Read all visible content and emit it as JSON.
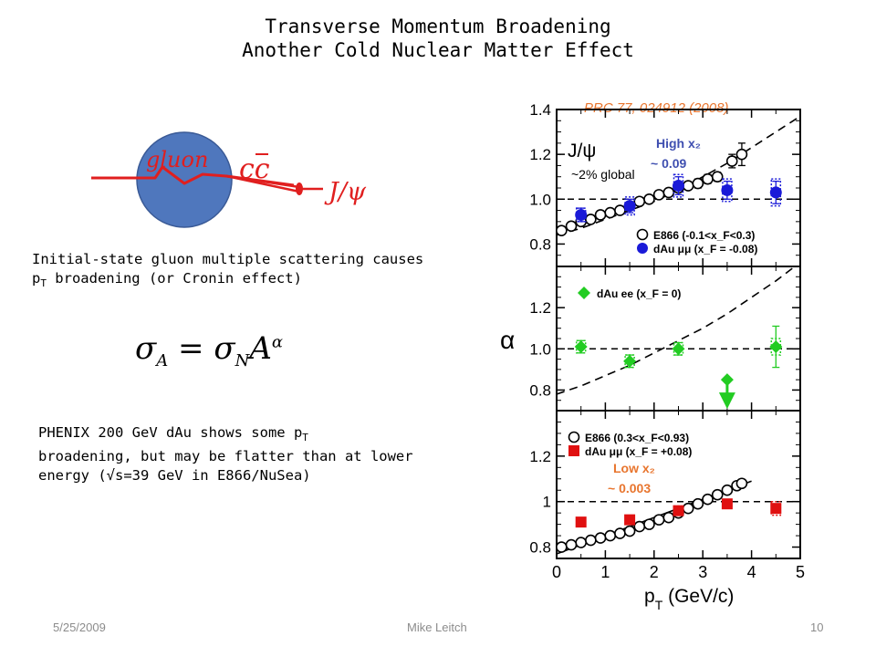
{
  "slide": {
    "title_line1": "Transverse Momentum Broadening",
    "title_line2": "Another Cold Nuclear Matter Effect",
    "citation": "PRC  77, 024912 (2008)",
    "diagram": {
      "gluon_label": "gluon",
      "pair_label": "cc",
      "jpsi_label": "J/ψ"
    },
    "text1_line1": "Initial-state gluon multiple scattering causes",
    "text1_line2_a": "p",
    "text1_line2_sub": "T",
    "text1_line2_b": " broadening (or Cronin effect)",
    "formula": {
      "sigma": "σ",
      "sub_A": "A",
      "eq": "=",
      "sub_N": "N",
      "A": "A",
      "alpha": "α"
    },
    "text2_line1_a": "PHENIX 200 GeV dAu shows some p",
    "text2_line1_sub": "T",
    "text2_line2": "broadening, but may be flatter than at lower",
    "text2_line3": "energy (√s=39 GeV in E866/NuSea)",
    "footer": {
      "date": "5/25/2009",
      "author": "Mike Leitch",
      "page": "10"
    }
  },
  "chart_data": {
    "type": "scatter",
    "xlabel": "p_T (GeV/c)",
    "ylabel": "α",
    "x_ticks": [
      0,
      1,
      2,
      3,
      4,
      5
    ],
    "xlim": [
      0,
      5
    ],
    "panels": [
      {
        "ylim": [
          0.7,
          1.4
        ],
        "y_ticks": [
          0.8,
          1.0,
          1.2,
          1.4
        ],
        "y_tick_labels": [
          "0.8",
          "1.0",
          "1.2",
          "1.4"
        ],
        "annotations": [
          "J/ψ",
          "~2% global",
          "High x₂",
          "~ 0.09"
        ],
        "legend": [
          "E866 (-0.1<x_F<0.3)",
          "dAu μμ (x_F = -0.08)"
        ],
        "series": [
          {
            "name": "E866 (-0.1<x_F<0.3)",
            "color": "#000000",
            "marker": "open-circle",
            "x": [
              0.1,
              0.3,
              0.5,
              0.7,
              0.9,
              1.1,
              1.3,
              1.5,
              1.7,
              1.9,
              2.1,
              2.3,
              2.5,
              2.7,
              2.9,
              3.1,
              3.3,
              3.6,
              3.8
            ],
            "y": [
              0.86,
              0.88,
              0.9,
              0.91,
              0.93,
              0.94,
              0.95,
              0.97,
              0.99,
              1.0,
              1.02,
              1.03,
              1.05,
              1.06,
              1.07,
              1.09,
              1.1,
              1.17,
              1.2
            ],
            "yerr": [
              0.01,
              0.01,
              0.01,
              0.01,
              0.01,
              0.01,
              0.01,
              0.01,
              0.01,
              0.01,
              0.01,
              0.01,
              0.01,
              0.01,
              0.02,
              0.02,
              0.02,
              0.03,
              0.05
            ]
          },
          {
            "name": "dAu μμ (x_F = -0.08)",
            "color": "#1a1ad8",
            "marker": "filled-circle",
            "x": [
              0.5,
              1.5,
              2.5,
              3.5,
              4.5
            ],
            "y": [
              0.93,
              0.97,
              1.06,
              1.04,
              1.03
            ],
            "yerr": [
              0.03,
              0.03,
              0.04,
              0.04,
              0.05
            ],
            "syserr": [
              0.03,
              0.04,
              0.05,
              0.05,
              0.06
            ]
          }
        ],
        "fit_curve": {
          "style": "dashed",
          "x": [
            0,
            0.5,
            1,
            1.5,
            2,
            2.5,
            3,
            3.5,
            4,
            4.5,
            5
          ],
          "y": [
            0.84,
            0.87,
            0.91,
            0.95,
            0.99,
            1.04,
            1.1,
            1.16,
            1.23,
            1.3,
            1.37
          ]
        },
        "reference_line": 1.0
      },
      {
        "ylim": [
          0.7,
          1.4
        ],
        "y_ticks": [
          0.8,
          1.0,
          1.2,
          1.4
        ],
        "y_tick_labels": [
          "0.8",
          "1.0",
          "1.2",
          ""
        ],
        "annotations": [],
        "legend": [
          "dAu ee (x_F = 0)"
        ],
        "series": [
          {
            "name": "dAu ee (x_F = 0)",
            "color": "#22cc22",
            "marker": "filled-diamond",
            "x": [
              0.5,
              1.5,
              2.5,
              4.5
            ],
            "y": [
              1.01,
              0.94,
              1.0,
              1.01
            ],
            "yerr": [
              0.03,
              0.03,
              0.03,
              0.1
            ],
            "syserr": [
              0.03,
              0.03,
              0.03,
              0.04
            ]
          },
          {
            "name": "dAu ee upper limit",
            "color": "#22cc22",
            "marker": "upper-limit",
            "x": [
              3.5
            ],
            "y": [
              0.85
            ]
          }
        ],
        "fit_curve": {
          "style": "dashed",
          "x": [
            0,
            0.5,
            1,
            1.5,
            2,
            2.5,
            3,
            3.5,
            4,
            4.5,
            5
          ],
          "y": [
            0.78,
            0.82,
            0.87,
            0.92,
            0.98,
            1.04,
            1.1,
            1.17,
            1.25,
            1.33,
            1.42
          ]
        },
        "reference_line": 1.0
      },
      {
        "ylim": [
          0.75,
          1.4
        ],
        "y_ticks": [
          0.8,
          1.0,
          1.2
        ],
        "y_tick_labels": [
          "0.8",
          "1",
          "1.2"
        ],
        "annotations": [
          "Low x₂",
          "~ 0.003"
        ],
        "legend": [
          "E866 (0.3<x_F<0.93)",
          "dAu μμ (x_F = +0.08)"
        ],
        "series": [
          {
            "name": "E866 (0.3<x_F<0.93)",
            "color": "#000000",
            "marker": "open-circle",
            "x": [
              0.1,
              0.3,
              0.5,
              0.7,
              0.9,
              1.1,
              1.3,
              1.5,
              1.7,
              1.9,
              2.1,
              2.3,
              2.5,
              2.7,
              2.9,
              3.1,
              3.3,
              3.5,
              3.7,
              3.8
            ],
            "y": [
              0.8,
              0.81,
              0.82,
              0.83,
              0.84,
              0.85,
              0.86,
              0.87,
              0.89,
              0.9,
              0.92,
              0.93,
              0.95,
              0.97,
              0.99,
              1.01,
              1.03,
              1.05,
              1.07,
              1.08
            ],
            "yerr": [
              0.01,
              0.01,
              0.01,
              0.01,
              0.01,
              0.01,
              0.01,
              0.01,
              0.01,
              0.01,
              0.01,
              0.01,
              0.01,
              0.01,
              0.01,
              0.01,
              0.01,
              0.01,
              0.01,
              0.01
            ]
          },
          {
            "name": "dAu μμ (x_F = +0.08)",
            "color": "#e01010",
            "marker": "filled-square",
            "x": [
              0.5,
              1.5,
              2.5,
              3.5,
              4.5
            ],
            "y": [
              0.91,
              0.92,
              0.96,
              0.99,
              0.97
            ],
            "yerr": [
              0.01,
              0.01,
              0.02,
              0.02,
              0.02
            ],
            "syserr": [
              0.0,
              0.0,
              0.02,
              0.02,
              0.03
            ]
          }
        ],
        "fit_curve": {
          "style": "solid",
          "x": [
            0,
            4
          ],
          "y": [
            0.77,
            1.09
          ]
        },
        "reference_line": 1.0
      }
    ]
  }
}
